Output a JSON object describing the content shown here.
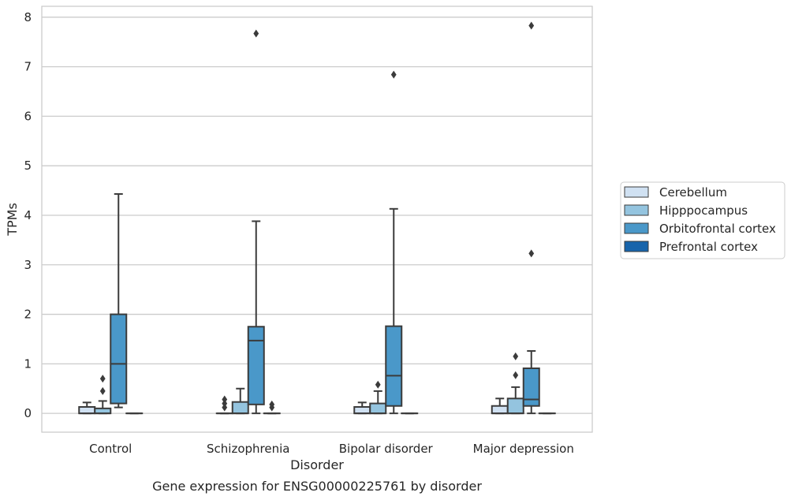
{
  "chart_data": {
    "type": "box",
    "title": "",
    "caption": "Gene expression for ENSG00000225761 by disorder",
    "xlabel": "Disorder",
    "ylabel": "TPMs",
    "ylim": [
      -0.38,
      8.22
    ],
    "yticks": [
      0,
      1,
      2,
      3,
      4,
      5,
      6,
      7,
      8
    ],
    "grid": "horizontal",
    "legend_position": "right",
    "categories": [
      "Control",
      "Schizophrenia",
      "Bipolar disorder",
      "Major depression"
    ],
    "series": [
      {
        "name": "Cerebellum",
        "color": "#d0e1f2",
        "boxes": [
          {
            "q1": 0.0,
            "median": 0.0,
            "q3": 0.13,
            "whisker_low": 0.0,
            "whisker_high": 0.22,
            "outliers": []
          },
          {
            "q1": 0.0,
            "median": 0.0,
            "q3": 0.0,
            "whisker_low": 0.0,
            "whisker_high": 0.0,
            "outliers": [
              0.12,
              0.2,
              0.28
            ]
          },
          {
            "q1": 0.0,
            "median": 0.0,
            "q3": 0.13,
            "whisker_low": 0.0,
            "whisker_high": 0.22,
            "outliers": []
          },
          {
            "q1": 0.0,
            "median": 0.0,
            "q3": 0.15,
            "whisker_low": 0.0,
            "whisker_high": 0.3,
            "outliers": []
          }
        ]
      },
      {
        "name": "Hipppocampus",
        "color": "#94c4df",
        "boxes": [
          {
            "q1": 0.0,
            "median": 0.0,
            "q3": 0.1,
            "whisker_low": 0.0,
            "whisker_high": 0.25,
            "outliers": [
              0.45,
              0.7
            ]
          },
          {
            "q1": 0.0,
            "median": 0.0,
            "q3": 0.23,
            "whisker_low": 0.0,
            "whisker_high": 0.5,
            "outliers": []
          },
          {
            "q1": 0.0,
            "median": 0.0,
            "q3": 0.2,
            "whisker_low": 0.0,
            "whisker_high": 0.45,
            "outliers": [
              0.58
            ]
          },
          {
            "q1": 0.0,
            "median": 0.0,
            "q3": 0.3,
            "whisker_low": 0.0,
            "whisker_high": 0.53,
            "outliers": [
              0.77,
              1.15
            ]
          }
        ]
      },
      {
        "name": "Orbitofrontal cortex",
        "color": "#4a98c9",
        "boxes": [
          {
            "q1": 0.2,
            "median": 1.0,
            "q3": 2.0,
            "whisker_low": 0.12,
            "whisker_high": 4.43,
            "outliers": []
          },
          {
            "q1": 0.18,
            "median": 1.47,
            "q3": 1.75,
            "whisker_low": 0.0,
            "whisker_high": 3.88,
            "outliers": [
              7.67
            ]
          },
          {
            "q1": 0.15,
            "median": 0.76,
            "q3": 1.76,
            "whisker_low": 0.0,
            "whisker_high": 4.13,
            "outliers": [
              6.84
            ]
          },
          {
            "q1": 0.15,
            "median": 0.28,
            "q3": 0.91,
            "whisker_low": 0.0,
            "whisker_high": 1.26,
            "outliers": [
              3.23,
              7.83
            ]
          }
        ]
      },
      {
        "name": "Prefrontal cortex",
        "color": "#1764ab",
        "boxes": [
          {
            "q1": 0.0,
            "median": 0.0,
            "q3": 0.0,
            "whisker_low": 0.0,
            "whisker_high": 0.0,
            "outliers": []
          },
          {
            "q1": 0.0,
            "median": 0.0,
            "q3": 0.0,
            "whisker_low": 0.0,
            "whisker_high": 0.0,
            "outliers": [
              0.12,
              0.18
            ]
          },
          {
            "q1": 0.0,
            "median": 0.0,
            "q3": 0.0,
            "whisker_low": 0.0,
            "whisker_high": 0.0,
            "outliers": []
          },
          {
            "q1": 0.0,
            "median": 0.0,
            "q3": 0.0,
            "whisker_low": 0.0,
            "whisker_high": 0.0,
            "outliers": []
          }
        ]
      }
    ]
  }
}
